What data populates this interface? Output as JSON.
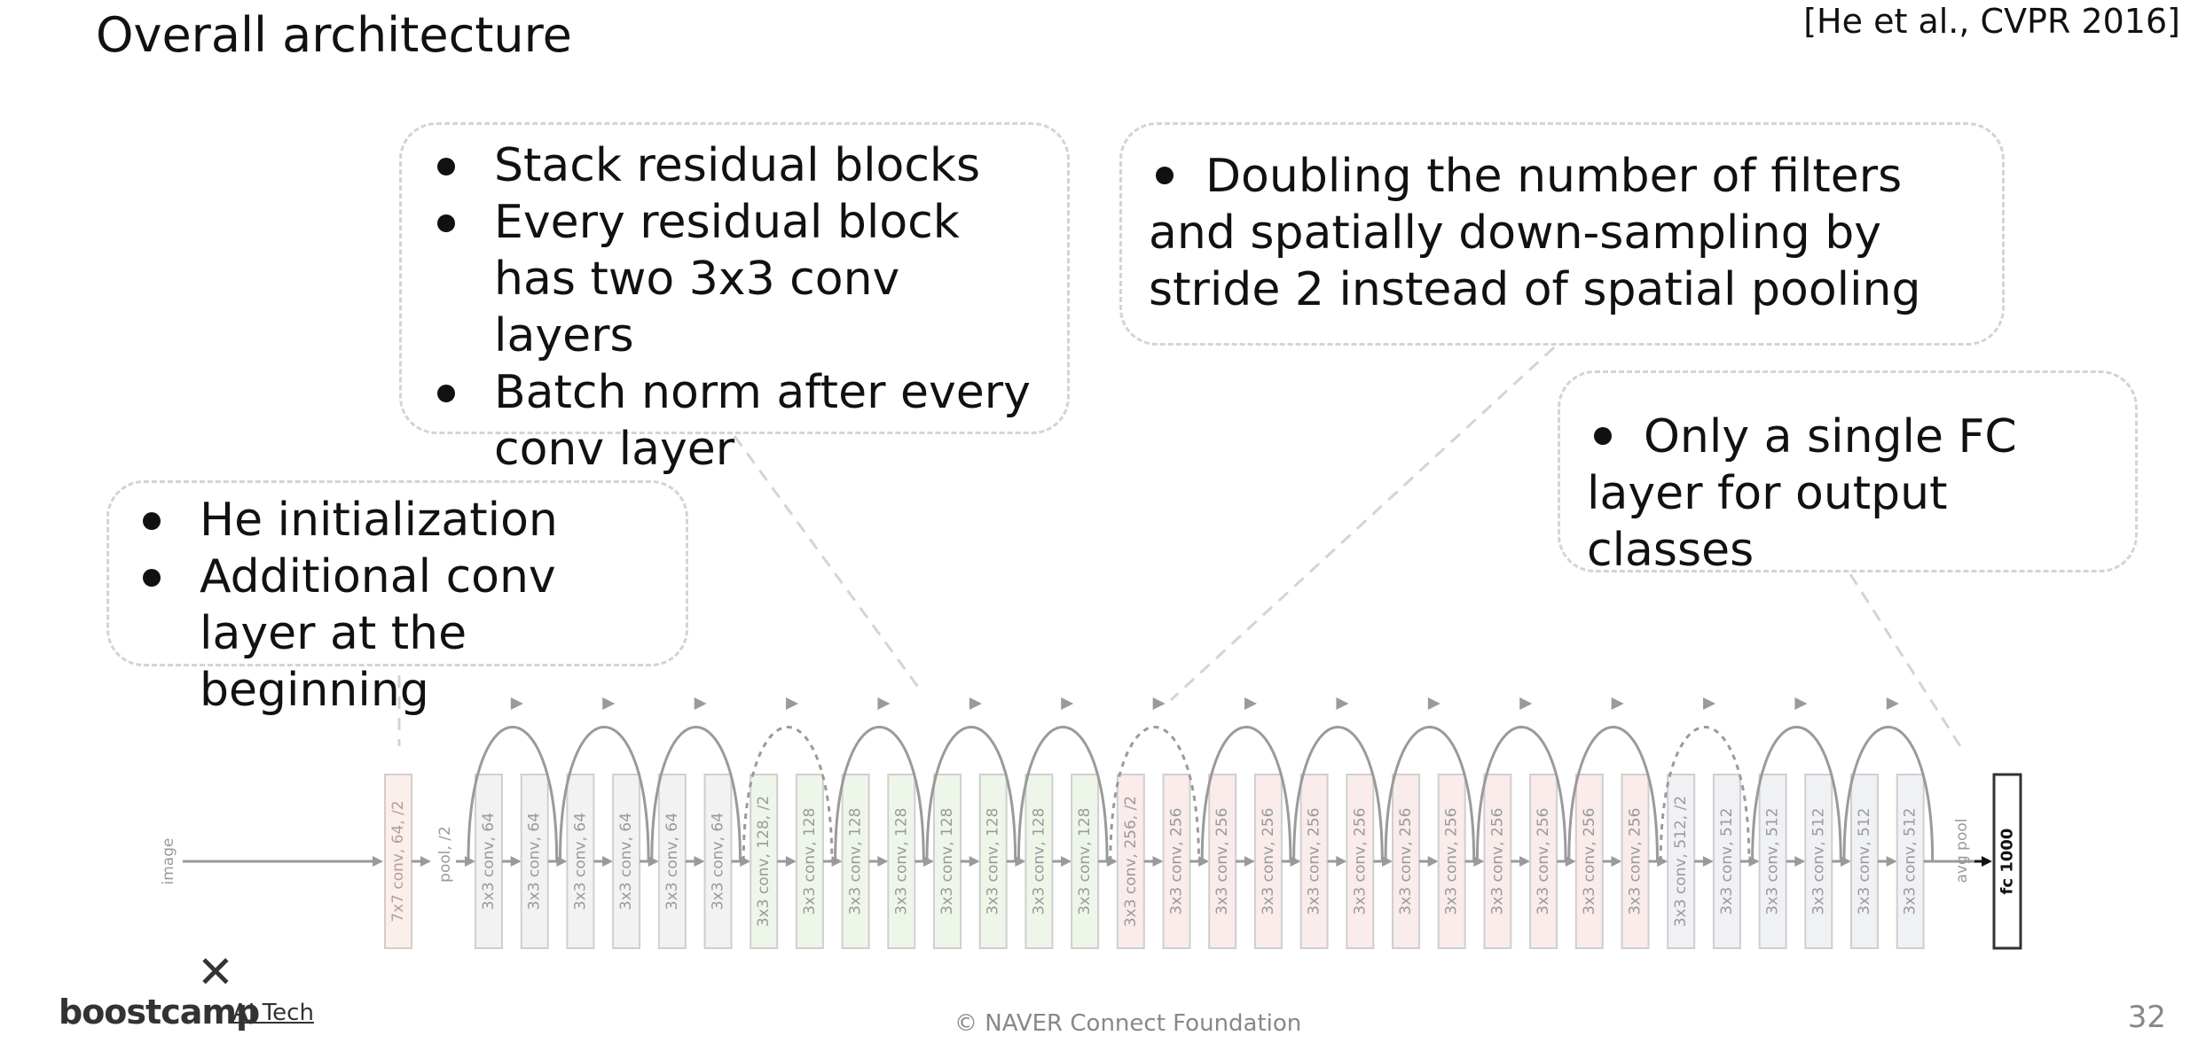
{
  "title": "Overall architecture",
  "citation": "[He et al., CVPR 2016]",
  "callouts": {
    "residual": {
      "items": [
        "Stack residual blocks",
        "Every residual block has two 3x3 conv layers",
        "Batch norm after every conv layer"
      ]
    },
    "downsample": {
      "text": "Doubling the number of filters and spatially down-sampling by stride 2 instead of spatial pooling"
    },
    "fc": {
      "text": "Only a single FC layer for output classes"
    },
    "init": {
      "items": [
        "He initialization",
        "Additional conv layer at the beginning"
      ]
    }
  },
  "network": {
    "input_label": "image",
    "first_layer": "7x7 conv, 64, /2",
    "pool_label": "pool, /2",
    "layers": [
      {
        "label": "3x3 conv, 64",
        "stage": 1
      },
      {
        "label": "3x3 conv, 64",
        "stage": 1
      },
      {
        "label": "3x3 conv, 64",
        "stage": 1
      },
      {
        "label": "3x3 conv, 64",
        "stage": 1
      },
      {
        "label": "3x3 conv, 64",
        "stage": 1
      },
      {
        "label": "3x3 conv, 64",
        "stage": 1
      },
      {
        "label": "3x3 conv, 128, /2",
        "stage": 2
      },
      {
        "label": "3x3 conv, 128",
        "stage": 2
      },
      {
        "label": "3x3 conv, 128",
        "stage": 2
      },
      {
        "label": "3x3 conv, 128",
        "stage": 2
      },
      {
        "label": "3x3 conv, 128",
        "stage": 2
      },
      {
        "label": "3x3 conv, 128",
        "stage": 2
      },
      {
        "label": "3x3 conv, 128",
        "stage": 2
      },
      {
        "label": "3x3 conv, 128",
        "stage": 2
      },
      {
        "label": "3x3 conv, 256, /2",
        "stage": 3
      },
      {
        "label": "3x3 conv, 256",
        "stage": 3
      },
      {
        "label": "3x3 conv, 256",
        "stage": 3
      },
      {
        "label": "3x3 conv, 256",
        "stage": 3
      },
      {
        "label": "3x3 conv, 256",
        "stage": 3
      },
      {
        "label": "3x3 conv, 256",
        "stage": 3
      },
      {
        "label": "3x3 conv, 256",
        "stage": 3
      },
      {
        "label": "3x3 conv, 256",
        "stage": 3
      },
      {
        "label": "3x3 conv, 256",
        "stage": 3
      },
      {
        "label": "3x3 conv, 256",
        "stage": 3
      },
      {
        "label": "3x3 conv, 256",
        "stage": 3
      },
      {
        "label": "3x3 conv, 256",
        "stage": 3
      },
      {
        "label": "3x3 conv, 512, /2",
        "stage": 4
      },
      {
        "label": "3x3 conv, 512",
        "stage": 4
      },
      {
        "label": "3x3 conv, 512",
        "stage": 4
      },
      {
        "label": "3x3 conv, 512",
        "stage": 4
      },
      {
        "label": "3x3 conv, 512",
        "stage": 4
      },
      {
        "label": "3x3 conv, 512",
        "stage": 4
      }
    ],
    "avgpool_label": "avg pool",
    "fc_label": "fc 1000"
  },
  "colors": {
    "stage1": "#f2f2f2",
    "stage2": "#eef6ea",
    "stage3": "#f9ecea",
    "stage4": "#f0f1f5",
    "first": "#faefea",
    "line": "#9a9a9a",
    "dashed": "#d4d4d4"
  },
  "footer": {
    "logo_mark": "✕",
    "logo_word": "boostcamp",
    "logo_sub": "AI Tech",
    "copyright": "© NAVER Connect Foundation",
    "page": "32"
  }
}
